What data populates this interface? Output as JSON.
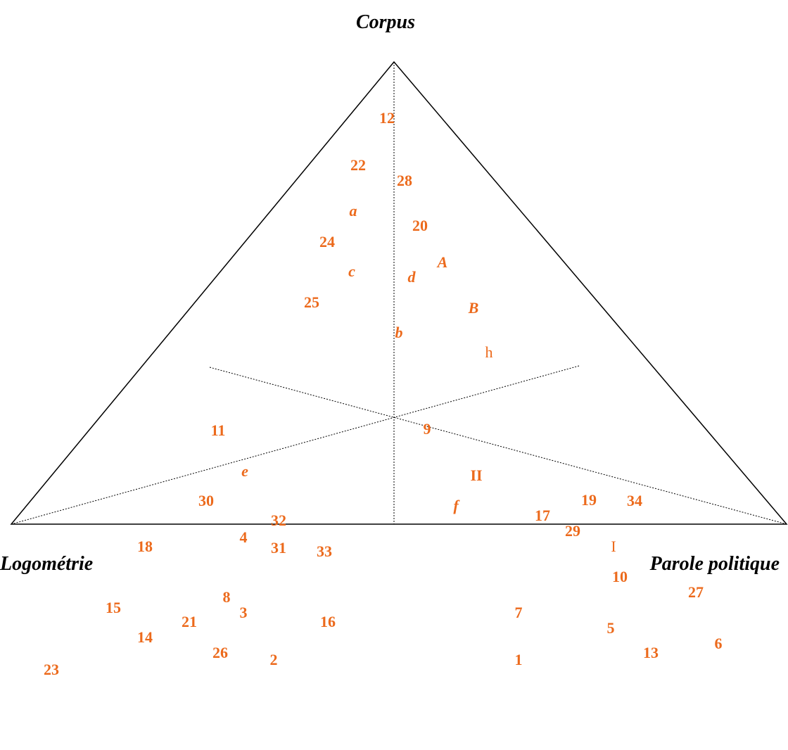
{
  "titles": {
    "top": "Corpus",
    "left": "Logométrie",
    "right": "Parole politique"
  },
  "points": [
    {
      "label": "12"
    },
    {
      "label": "22"
    },
    {
      "label": "28"
    },
    {
      "label": "a"
    },
    {
      "label": "20"
    },
    {
      "label": "24"
    },
    {
      "label": "A"
    },
    {
      "label": "c"
    },
    {
      "label": "d"
    },
    {
      "label": "25"
    },
    {
      "label": "B"
    },
    {
      "label": "b"
    },
    {
      "label": "h"
    },
    {
      "label": "9"
    },
    {
      "label": "11"
    },
    {
      "label": "II"
    },
    {
      "label": "e"
    },
    {
      "label": "f"
    },
    {
      "label": "30"
    },
    {
      "label": "19"
    },
    {
      "label": "34"
    },
    {
      "label": "32"
    },
    {
      "label": "17"
    },
    {
      "label": "29"
    },
    {
      "label": "4"
    },
    {
      "label": "18"
    },
    {
      "label": "I"
    },
    {
      "label": "33"
    },
    {
      "label": "31"
    },
    {
      "label": "10"
    },
    {
      "label": "27"
    },
    {
      "label": "8"
    },
    {
      "label": "15"
    },
    {
      "label": "7"
    },
    {
      "label": "3"
    },
    {
      "label": "21"
    },
    {
      "label": "16"
    },
    {
      "label": "5"
    },
    {
      "label": "14"
    },
    {
      "label": "26"
    },
    {
      "label": "6"
    },
    {
      "label": "13"
    },
    {
      "label": "2"
    },
    {
      "label": "1"
    },
    {
      "label": "23"
    }
  ]
}
